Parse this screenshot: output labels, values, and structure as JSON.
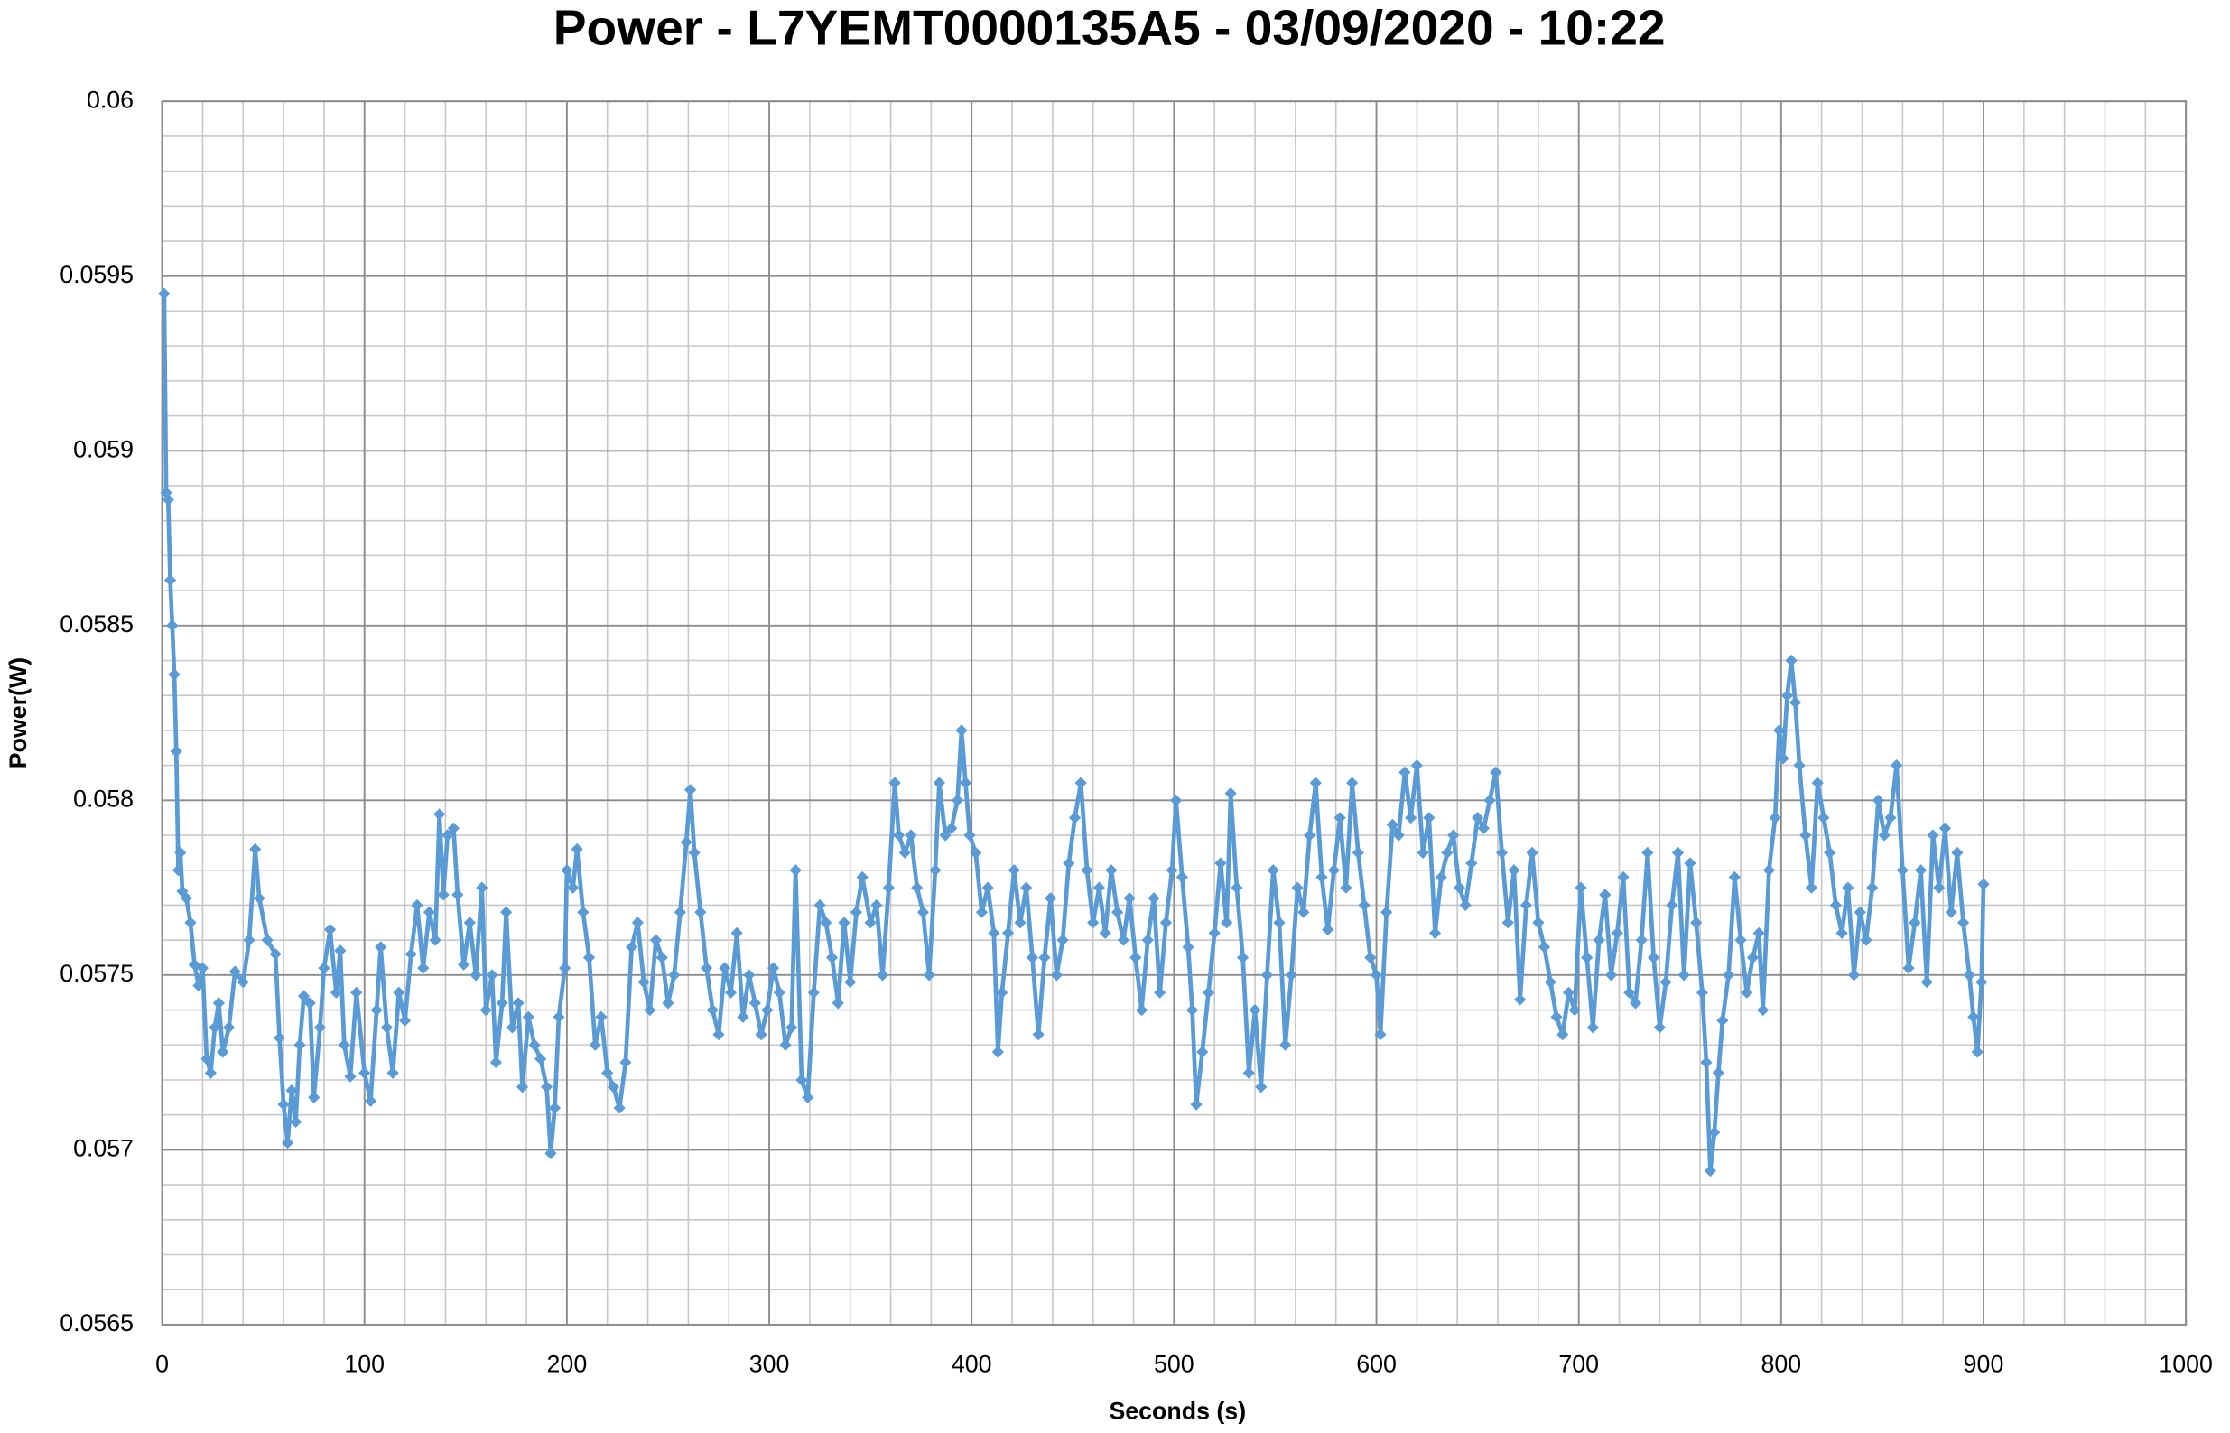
{
  "chart_data": {
    "type": "line",
    "title": "Power - L7YEMT0000135A5 - 03/09/2020 - 10:22",
    "xlabel": "Seconds (s)",
    "ylabel": "Power(W)",
    "xlim": [
      0,
      1000
    ],
    "xticks": [
      0,
      100,
      200,
      300,
      400,
      500,
      600,
      700,
      800,
      900,
      1000
    ],
    "ylim": [
      0.0565,
      0.06
    ],
    "yticks": [
      0.0565,
      0.057,
      0.0575,
      0.058,
      0.0585,
      0.059,
      0.0595,
      0.06
    ],
    "grid": true,
    "minor_grid": {
      "x": 5,
      "y": 5
    },
    "marker": "diamond",
    "x": [
      1,
      2,
      3,
      4,
      5,
      6,
      7,
      8,
      9,
      10,
      12,
      14,
      16,
      18,
      20,
      22,
      24,
      26,
      28,
      30,
      33,
      36,
      40,
      43,
      46,
      48,
      52,
      56,
      58,
      60,
      62,
      64,
      66,
      68,
      70,
      73,
      75,
      78,
      80,
      83,
      86,
      88,
      90,
      93,
      96,
      100,
      103,
      106,
      108,
      111,
      114,
      117,
      120,
      123,
      126,
      129,
      132,
      135,
      137,
      139,
      141,
      144,
      146,
      149,
      152,
      155,
      158,
      160,
      163,
      165,
      168,
      170,
      173,
      176,
      178,
      181,
      184,
      187,
      190,
      192,
      194,
      196,
      199,
      200,
      203,
      205,
      208,
      211,
      214,
      217,
      220,
      223,
      226,
      229,
      232,
      235,
      238,
      241,
      244,
      247,
      250,
      253,
      256,
      259,
      261,
      263,
      266,
      269,
      272,
      275,
      278,
      281,
      284,
      287,
      290,
      293,
      296,
      299,
      302,
      305,
      308,
      311,
      313,
      316,
      319,
      322,
      325,
      328,
      331,
      334,
      337,
      340,
      343,
      346,
      350,
      353,
      356,
      359,
      362,
      364,
      367,
      370,
      373,
      376,
      379,
      382,
      384,
      387,
      390,
      393,
      395,
      397,
      399,
      402,
      405,
      408,
      411,
      413,
      415,
      418,
      421,
      424,
      427,
      430,
      433,
      436,
      439,
      442,
      445,
      448,
      451,
      454,
      457,
      460,
      463,
      466,
      469,
      472,
      475,
      478,
      481,
      484,
      487,
      490,
      493,
      496,
      499,
      501,
      504,
      507,
      509,
      511,
      514,
      517,
      520,
      523,
      526,
      528,
      531,
      534,
      537,
      540,
      543,
      546,
      549,
      552,
      555,
      558,
      561,
      564,
      567,
      570,
      573,
      576,
      579,
      582,
      585,
      588,
      591,
      594,
      597,
      600,
      602,
      605,
      608,
      611,
      614,
      617,
      620,
      623,
      626,
      629,
      632,
      635,
      638,
      641,
      644,
      647,
      650,
      653,
      656,
      659,
      662,
      665,
      668,
      671,
      674,
      677,
      680,
      683,
      686,
      689,
      692,
      695,
      698,
      701,
      704,
      707,
      710,
      713,
      716,
      719,
      722,
      725,
      728,
      731,
      734,
      737,
      740,
      743,
      746,
      749,
      752,
      755,
      758,
      761,
      763,
      765,
      767,
      769,
      771,
      774,
      777,
      780,
      783,
      786,
      789,
      791,
      794,
      797,
      799,
      801,
      803,
      805,
      807,
      809,
      812,
      815,
      818,
      821,
      824,
      827,
      830,
      833,
      836,
      839,
      842,
      845,
      848,
      851,
      854,
      857,
      860,
      863,
      866,
      869,
      872,
      875,
      878,
      881,
      884,
      887,
      890,
      893,
      895,
      897,
      899,
      900
    ],
    "series": [
      {
        "name": "Power",
        "color": "#5b9bd5",
        "values": [
          0.05945,
          0.05888,
          0.05886,
          0.05863,
          0.0585,
          0.05836,
          0.05814,
          0.0578,
          0.05785,
          0.05774,
          0.05772,
          0.05765,
          0.05753,
          0.05747,
          0.05752,
          0.05726,
          0.05722,
          0.05735,
          0.05742,
          0.05728,
          0.05735,
          0.05751,
          0.05748,
          0.0576,
          0.05786,
          0.05772,
          0.0576,
          0.05756,
          0.05732,
          0.05713,
          0.05702,
          0.05717,
          0.05708,
          0.0573,
          0.05744,
          0.05742,
          0.05715,
          0.05735,
          0.05752,
          0.05763,
          0.05745,
          0.05757,
          0.0573,
          0.05721,
          0.05745,
          0.05722,
          0.05714,
          0.0574,
          0.05758,
          0.05735,
          0.05722,
          0.05745,
          0.05737,
          0.05756,
          0.0577,
          0.05752,
          0.05768,
          0.0576,
          0.05796,
          0.05773,
          0.0579,
          0.05792,
          0.05773,
          0.05753,
          0.05765,
          0.0575,
          0.05775,
          0.0574,
          0.0575,
          0.05725,
          0.05742,
          0.05768,
          0.05735,
          0.05742,
          0.05718,
          0.05738,
          0.0573,
          0.05726,
          0.05718,
          0.05699,
          0.05712,
          0.05738,
          0.05752,
          0.0578,
          0.05775,
          0.05786,
          0.05768,
          0.05755,
          0.0573,
          0.05738,
          0.05722,
          0.05718,
          0.05712,
          0.05725,
          0.05758,
          0.05765,
          0.05748,
          0.0574,
          0.0576,
          0.05755,
          0.05742,
          0.0575,
          0.05768,
          0.05788,
          0.05803,
          0.05785,
          0.05768,
          0.05752,
          0.0574,
          0.05733,
          0.05752,
          0.05745,
          0.05762,
          0.05738,
          0.0575,
          0.05742,
          0.05733,
          0.0574,
          0.05752,
          0.05745,
          0.0573,
          0.05735,
          0.0578,
          0.0572,
          0.05715,
          0.05745,
          0.0577,
          0.05765,
          0.05755,
          0.05742,
          0.05765,
          0.05748,
          0.05768,
          0.05778,
          0.05765,
          0.0577,
          0.0575,
          0.05775,
          0.05805,
          0.0579,
          0.05785,
          0.0579,
          0.05775,
          0.05768,
          0.0575,
          0.0578,
          0.05805,
          0.0579,
          0.05792,
          0.058,
          0.0582,
          0.05805,
          0.0579,
          0.05785,
          0.05768,
          0.05775,
          0.05762,
          0.05728,
          0.05745,
          0.05762,
          0.0578,
          0.05765,
          0.05775,
          0.05755,
          0.05733,
          0.05755,
          0.05772,
          0.0575,
          0.0576,
          0.05782,
          0.05795,
          0.05805,
          0.0578,
          0.05765,
          0.05775,
          0.05762,
          0.0578,
          0.05768,
          0.0576,
          0.05772,
          0.05755,
          0.0574,
          0.0576,
          0.05772,
          0.05745,
          0.05765,
          0.0578,
          0.058,
          0.05778,
          0.05758,
          0.0574,
          0.05713,
          0.05728,
          0.05745,
          0.05762,
          0.05782,
          0.05765,
          0.05802,
          0.05775,
          0.05755,
          0.05722,
          0.0574,
          0.05718,
          0.0575,
          0.0578,
          0.05765,
          0.0573,
          0.0575,
          0.05775,
          0.05768,
          0.0579,
          0.05805,
          0.05778,
          0.05763,
          0.0578,
          0.05795,
          0.05775,
          0.05805,
          0.05785,
          0.0577,
          0.05755,
          0.0575,
          0.05733,
          0.05768,
          0.05793,
          0.0579,
          0.05808,
          0.05795,
          0.0581,
          0.05785,
          0.05795,
          0.05762,
          0.05778,
          0.05785,
          0.0579,
          0.05775,
          0.0577,
          0.05782,
          0.05795,
          0.05792,
          0.058,
          0.05808,
          0.05785,
          0.05765,
          0.0578,
          0.05743,
          0.0577,
          0.05785,
          0.05765,
          0.05758,
          0.05748,
          0.05738,
          0.05733,
          0.05745,
          0.0574,
          0.05775,
          0.05755,
          0.05735,
          0.0576,
          0.05773,
          0.0575,
          0.05762,
          0.05778,
          0.05745,
          0.05742,
          0.0576,
          0.05785,
          0.05755,
          0.05735,
          0.05748,
          0.0577,
          0.05785,
          0.0575,
          0.05782,
          0.05765,
          0.05745,
          0.05725,
          0.05694,
          0.05705,
          0.05722,
          0.05737,
          0.0575,
          0.05778,
          0.0576,
          0.05745,
          0.05755,
          0.05762,
          0.0574,
          0.0578,
          0.05795,
          0.0582,
          0.05812,
          0.0583,
          0.0584,
          0.05828,
          0.0581,
          0.0579,
          0.05775,
          0.05805,
          0.05795,
          0.05785,
          0.0577,
          0.05762,
          0.05775,
          0.0575,
          0.05768,
          0.0576,
          0.05775,
          0.058,
          0.0579,
          0.05795,
          0.0581,
          0.0578,
          0.05752,
          0.05765,
          0.0578,
          0.05748,
          0.0579,
          0.05775,
          0.05792,
          0.05768,
          0.05785,
          0.05765,
          0.0575,
          0.05738,
          0.05728,
          0.05748,
          0.05776
        ]
      }
    ]
  }
}
